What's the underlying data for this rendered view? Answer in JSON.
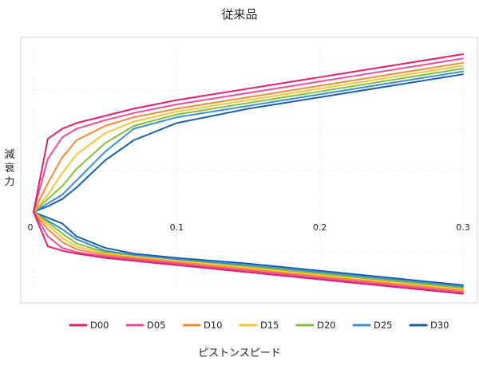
{
  "chart_data": {
    "type": "line",
    "title": "従来品",
    "xlabel": "ピストンスピード",
    "ylabel": "減衰力",
    "xlim": [
      0,
      0.3
    ],
    "ylim": [
      -1,
      1
    ],
    "xticks": [
      "0",
      "0.1",
      "0.2",
      "0.3"
    ],
    "grid": true,
    "legend_position": "bottom",
    "series": [
      {
        "name": "D00",
        "color": "#e0206a",
        "upper": [
          [
            0,
            0
          ],
          [
            0.01,
            0.51
          ],
          [
            0.02,
            0.58
          ],
          [
            0.03,
            0.62
          ],
          [
            0.05,
            0.67
          ],
          [
            0.07,
            0.72
          ],
          [
            0.1,
            0.78
          ],
          [
            0.15,
            0.86
          ],
          [
            0.2,
            0.94
          ],
          [
            0.25,
            1.02
          ],
          [
            0.3,
            1.1
          ]
        ],
        "lower": [
          [
            0,
            0
          ],
          [
            0.01,
            -0.24
          ],
          [
            0.02,
            -0.27
          ],
          [
            0.03,
            -0.29
          ],
          [
            0.05,
            -0.32
          ],
          [
            0.07,
            -0.34
          ],
          [
            0.1,
            -0.37
          ],
          [
            0.15,
            -0.42
          ],
          [
            0.2,
            -0.47
          ],
          [
            0.25,
            -0.52
          ],
          [
            0.3,
            -0.57
          ]
        ]
      },
      {
        "name": "D05",
        "color": "#e84f98",
        "upper": [
          [
            0,
            0
          ],
          [
            0.01,
            0.37
          ],
          [
            0.02,
            0.52
          ],
          [
            0.03,
            0.58
          ],
          [
            0.05,
            0.64
          ],
          [
            0.07,
            0.69
          ],
          [
            0.1,
            0.75
          ],
          [
            0.15,
            0.83
          ],
          [
            0.2,
            0.91
          ],
          [
            0.25,
            0.99
          ],
          [
            0.3,
            1.07
          ]
        ],
        "lower": [
          [
            0,
            0
          ],
          [
            0.01,
            -0.17
          ],
          [
            0.02,
            -0.25
          ],
          [
            0.03,
            -0.28
          ],
          [
            0.05,
            -0.31
          ],
          [
            0.07,
            -0.33
          ],
          [
            0.1,
            -0.36
          ],
          [
            0.15,
            -0.41
          ],
          [
            0.2,
            -0.46
          ],
          [
            0.25,
            -0.51
          ],
          [
            0.3,
            -0.56
          ]
        ]
      },
      {
        "name": "D10",
        "color": "#f08c38",
        "upper": [
          [
            0,
            0
          ],
          [
            0.01,
            0.2
          ],
          [
            0.02,
            0.38
          ],
          [
            0.03,
            0.5
          ],
          [
            0.05,
            0.6
          ],
          [
            0.07,
            0.66
          ],
          [
            0.1,
            0.72
          ],
          [
            0.15,
            0.8
          ],
          [
            0.2,
            0.88
          ],
          [
            0.25,
            0.96
          ],
          [
            0.3,
            1.04
          ]
        ],
        "lower": [
          [
            0,
            0
          ],
          [
            0.01,
            -0.12
          ],
          [
            0.02,
            -0.21
          ],
          [
            0.03,
            -0.26
          ],
          [
            0.05,
            -0.3
          ],
          [
            0.07,
            -0.32
          ],
          [
            0.1,
            -0.35
          ],
          [
            0.15,
            -0.4
          ],
          [
            0.2,
            -0.45
          ],
          [
            0.25,
            -0.5
          ],
          [
            0.3,
            -0.55
          ]
        ]
      },
      {
        "name": "D15",
        "color": "#f3c43c",
        "upper": [
          [
            0,
            0
          ],
          [
            0.01,
            0.12
          ],
          [
            0.02,
            0.27
          ],
          [
            0.03,
            0.4
          ],
          [
            0.05,
            0.55
          ],
          [
            0.07,
            0.63
          ],
          [
            0.1,
            0.7
          ],
          [
            0.15,
            0.78
          ],
          [
            0.2,
            0.86
          ],
          [
            0.25,
            0.94
          ],
          [
            0.3,
            1.02
          ]
        ],
        "lower": [
          [
            0,
            0
          ],
          [
            0.01,
            -0.09
          ],
          [
            0.02,
            -0.18
          ],
          [
            0.03,
            -0.24
          ],
          [
            0.05,
            -0.29
          ],
          [
            0.07,
            -0.31
          ],
          [
            0.1,
            -0.34
          ],
          [
            0.15,
            -0.39
          ],
          [
            0.2,
            -0.44
          ],
          [
            0.25,
            -0.49
          ],
          [
            0.3,
            -0.54
          ]
        ]
      },
      {
        "name": "D20",
        "color": "#84be3c",
        "upper": [
          [
            0,
            0
          ],
          [
            0.01,
            0.09
          ],
          [
            0.02,
            0.18
          ],
          [
            0.03,
            0.3
          ],
          [
            0.05,
            0.48
          ],
          [
            0.07,
            0.6
          ],
          [
            0.1,
            0.68
          ],
          [
            0.15,
            0.76
          ],
          [
            0.2,
            0.84
          ],
          [
            0.25,
            0.92
          ],
          [
            0.3,
            1.0
          ]
        ],
        "lower": [
          [
            0,
            0
          ],
          [
            0.01,
            -0.07
          ],
          [
            0.02,
            -0.15
          ],
          [
            0.03,
            -0.22
          ],
          [
            0.05,
            -0.28
          ],
          [
            0.07,
            -0.31
          ],
          [
            0.1,
            -0.34
          ],
          [
            0.15,
            -0.38
          ],
          [
            0.2,
            -0.43
          ],
          [
            0.25,
            -0.48
          ],
          [
            0.3,
            -0.53
          ]
        ]
      },
      {
        "name": "D25",
        "color": "#3c8fd0",
        "upper": [
          [
            0,
            0
          ],
          [
            0.01,
            0.06
          ],
          [
            0.02,
            0.12
          ],
          [
            0.03,
            0.22
          ],
          [
            0.05,
            0.42
          ],
          [
            0.07,
            0.58
          ],
          [
            0.1,
            0.66
          ],
          [
            0.15,
            0.74
          ],
          [
            0.2,
            0.82
          ],
          [
            0.25,
            0.9
          ],
          [
            0.3,
            0.98
          ]
        ],
        "lower": [
          [
            0,
            0
          ],
          [
            0.01,
            -0.06
          ],
          [
            0.02,
            -0.12
          ],
          [
            0.03,
            -0.19
          ],
          [
            0.05,
            -0.27
          ],
          [
            0.07,
            -0.3
          ],
          [
            0.1,
            -0.33
          ],
          [
            0.15,
            -0.37
          ],
          [
            0.2,
            -0.42
          ],
          [
            0.25,
            -0.47
          ],
          [
            0.3,
            -0.52
          ]
        ]
      },
      {
        "name": "D30",
        "color": "#1d5ea8",
        "upper": [
          [
            0,
            0
          ],
          [
            0.01,
            0.04
          ],
          [
            0.02,
            0.09
          ],
          [
            0.03,
            0.17
          ],
          [
            0.05,
            0.36
          ],
          [
            0.07,
            0.5
          ],
          [
            0.1,
            0.62
          ],
          [
            0.15,
            0.72
          ],
          [
            0.2,
            0.8
          ],
          [
            0.25,
            0.88
          ],
          [
            0.3,
            0.96
          ]
        ],
        "lower": [
          [
            0,
            0
          ],
          [
            0.01,
            -0.04
          ],
          [
            0.02,
            -0.08
          ],
          [
            0.03,
            -0.17
          ],
          [
            0.05,
            -0.25
          ],
          [
            0.07,
            -0.29
          ],
          [
            0.1,
            -0.32
          ],
          [
            0.15,
            -0.36
          ],
          [
            0.2,
            -0.41
          ],
          [
            0.25,
            -0.46
          ],
          [
            0.3,
            -0.51
          ]
        ]
      }
    ]
  }
}
